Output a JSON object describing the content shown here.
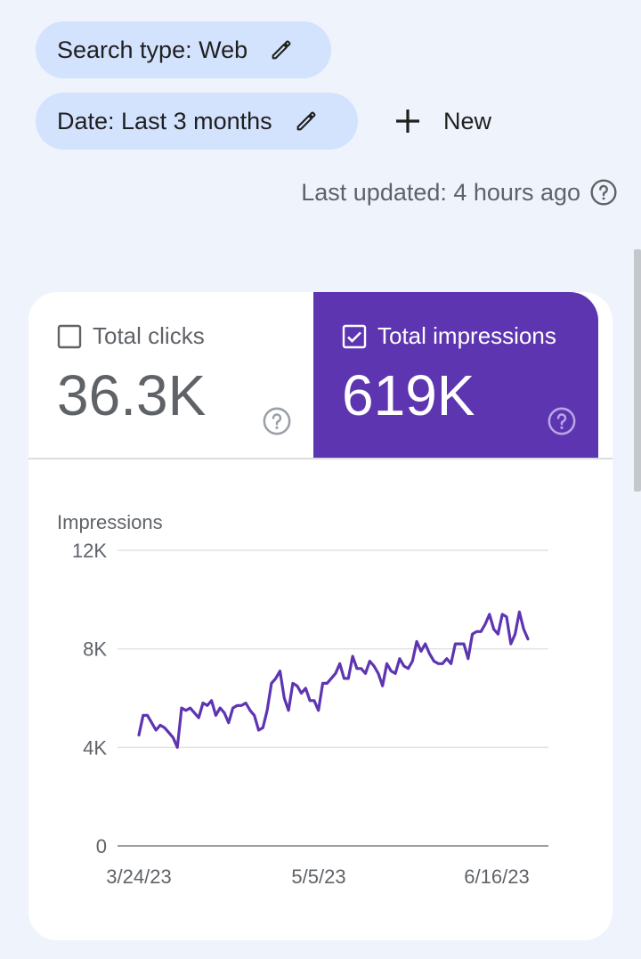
{
  "filters": {
    "search_type_label": "Search type: Web",
    "date_label": "Date: Last 3 months",
    "new_label": "New"
  },
  "status": {
    "last_updated": "Last updated: 4 hours ago"
  },
  "metrics": {
    "clicks": {
      "label": "Total clicks",
      "value": "36.3K",
      "checked": false
    },
    "impressions": {
      "label": "Total impressions",
      "value": "619K",
      "checked": true
    }
  },
  "colors": {
    "accent": "#5e35b1",
    "chip_bg": "#d3e3fd",
    "page_bg": "#eef3fc"
  },
  "chart_data": {
    "type": "line",
    "ylabel": "Impressions",
    "yticks": [
      "12K",
      "8K",
      "4K",
      "0"
    ],
    "ylim": [
      0,
      12000
    ],
    "xticks": [
      "3/24/23",
      "5/5/23",
      "6/16/23"
    ],
    "x_range": [
      "3/24/23",
      "6/26/23"
    ],
    "grid": true,
    "series": [
      {
        "color": "#5e35b1",
        "values": [
          4500,
          5300,
          5300,
          5000,
          4700,
          4900,
          4800,
          4600,
          4400,
          4000,
          5600,
          5500,
          5600,
          5400,
          5200,
          5800,
          5700,
          5900,
          5300,
          5600,
          5400,
          5000,
          5600,
          5700,
          5700,
          5800,
          5500,
          5300,
          4700,
          4800,
          5500,
          6600,
          6800,
          7100,
          6000,
          5500,
          6600,
          6500,
          6200,
          6400,
          5900,
          5900,
          5500,
          6600,
          6600,
          6800,
          7000,
          7400,
          6800,
          6800,
          7700,
          7200,
          7200,
          7000,
          7500,
          7300,
          7000,
          6500,
          7400,
          7100,
          7000,
          7600,
          7300,
          7200,
          7500,
          8300,
          7900,
          8200,
          7800,
          7500,
          7400,
          7400,
          7600,
          7400,
          8200,
          8200,
          8200,
          7600,
          8600,
          8700,
          8700,
          9000,
          9400,
          8800,
          8600,
          9400,
          9300,
          8200,
          8600,
          9500,
          8800,
          8400
        ]
      }
    ]
  }
}
